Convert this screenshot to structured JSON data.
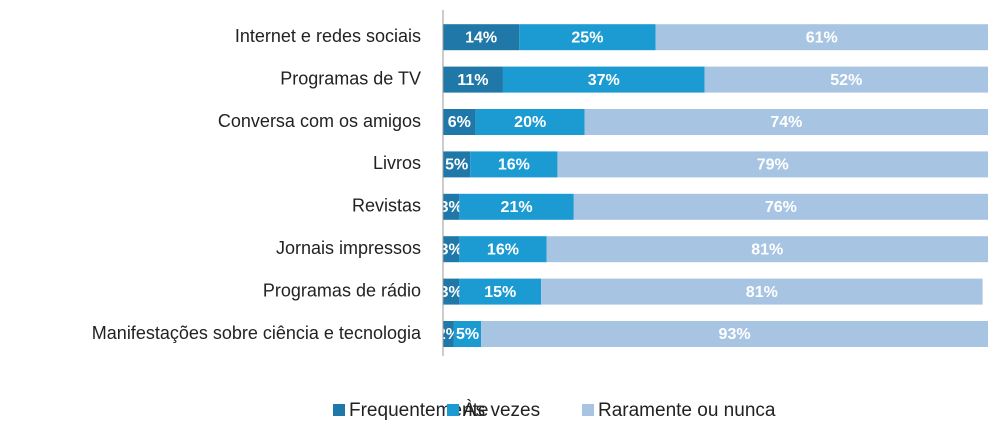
{
  "chart_data": {
    "type": "stacked-bar-horizontal",
    "categories": [
      "Internet e redes sociais",
      "Programas de TV",
      "Conversa com os amigos",
      "Livros",
      "Revistas",
      "Jornais impressos",
      "Programas de rádio",
      "Manifestações sobre ciência e tecnologia"
    ],
    "series": [
      {
        "name": "Frequentemente",
        "color": "#1f78a8",
        "values": [
          14,
          11,
          6,
          5,
          3,
          3,
          3,
          2
        ],
        "value_labels": [
          "14%",
          "11%",
          "6%",
          "5%",
          "3%",
          "3%",
          "3%",
          "2%"
        ]
      },
      {
        "name": "Às vezes",
        "color": "#1b9bd1",
        "values": [
          25,
          37,
          20,
          16,
          21,
          16,
          15,
          5
        ],
        "value_labels": [
          "25%",
          "37%",
          "20%",
          "16%",
          "21%",
          "16%",
          "15%",
          "5%"
        ]
      },
      {
        "name": "Raramente ou nunca",
        "color": "#a7c5e2",
        "values": [
          61,
          52,
          74,
          79,
          76,
          81,
          81,
          93
        ],
        "value_labels": [
          "61%",
          "52%",
          "74%",
          "79%",
          "76%",
          "81%",
          "81%",
          "93%"
        ]
      }
    ],
    "xlim": [
      0,
      100
    ],
    "legend": "bottom"
  }
}
